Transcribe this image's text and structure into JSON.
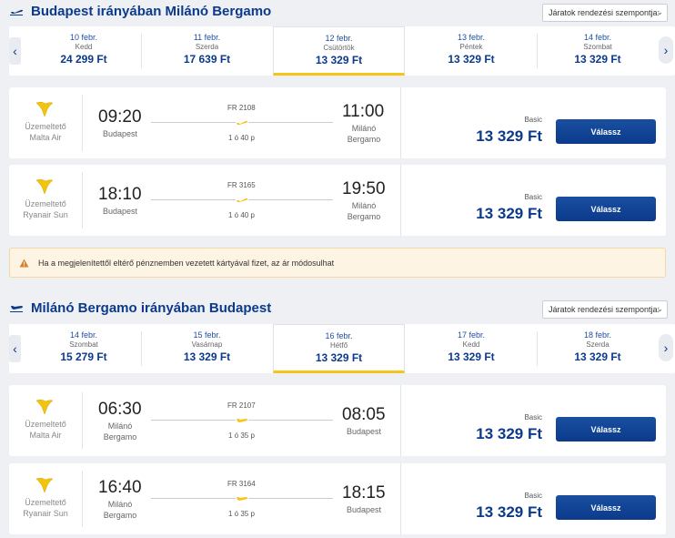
{
  "outbound": {
    "title": "Budapest irányában Milánó Bergamo",
    "sort_label": "Járatok rendezési szempontja:",
    "dates": [
      {
        "date": "10 febr.",
        "weekday": "Kedd",
        "price": "24 299 Ft"
      },
      {
        "date": "11 febr.",
        "weekday": "Szerda",
        "price": "17 639 Ft"
      },
      {
        "date": "12 febr.",
        "weekday": "Csütörtök",
        "price": "13 329 Ft",
        "selected": true
      },
      {
        "date": "13 febr.",
        "weekday": "Péntek",
        "price": "13 329 Ft"
      },
      {
        "date": "14 febr.",
        "weekday": "Szombat",
        "price": "13 329 Ft"
      }
    ],
    "flights": [
      {
        "operator_label": "Üzemeltető",
        "operator": "Malta Air",
        "dep_time": "09:20",
        "dep_place": "Budapest",
        "flight_no": "FR 2108",
        "duration": "1 ó 40 p",
        "arr_time": "11:00",
        "arr_place_1": "Milánó",
        "arr_place_2": "Bergamo",
        "fare": "Basic",
        "price": "13 329 Ft",
        "button": "Válassz"
      },
      {
        "operator_label": "Üzemeltető",
        "operator": "Ryanair Sun",
        "dep_time": "18:10",
        "dep_place": "Budapest",
        "flight_no": "FR 3165",
        "duration": "1 ó 40 p",
        "arr_time": "19:50",
        "arr_place_1": "Milánó",
        "arr_place_2": "Bergamo",
        "fare": "Basic",
        "price": "13 329 Ft",
        "button": "Válassz"
      }
    ]
  },
  "warning": "Ha a megjelenítettől eltérő pénznemben vezetett kártyával fizet, az ár módosulhat",
  "inbound": {
    "title": "Milánó Bergamo irányában Budapest",
    "sort_label": "Járatok rendezési szempontja:",
    "dates": [
      {
        "date": "14 febr.",
        "weekday": "Szombat",
        "price": "15 279 Ft"
      },
      {
        "date": "15 febr.",
        "weekday": "Vasárnap",
        "price": "13 329 Ft"
      },
      {
        "date": "16 febr.",
        "weekday": "Hétfő",
        "price": "13 329 Ft",
        "selected": true
      },
      {
        "date": "17 febr.",
        "weekday": "Kedd",
        "price": "13 329 Ft"
      },
      {
        "date": "18 febr.",
        "weekday": "Szerda",
        "price": "13 329 Ft"
      }
    ],
    "flights": [
      {
        "operator_label": "Üzemeltető",
        "operator": "Malta Air",
        "dep_time": "06:30",
        "dep_place_1": "Milánó",
        "dep_place_2": "Bergamo",
        "flight_no": "FR 2107",
        "duration": "1 ó 35 p",
        "arr_time": "08:05",
        "arr_place": "Budapest",
        "fare": "Basic",
        "price": "13 329 Ft",
        "button": "Válassz"
      },
      {
        "operator_label": "Üzemeltető",
        "operator": "Ryanair Sun",
        "dep_time": "16:40",
        "dep_place_1": "Milánó",
        "dep_place_2": "Bergamo",
        "flight_no": "FR 3164",
        "duration": "1 ó 35 p",
        "arr_time": "18:15",
        "arr_place": "Budapest",
        "fare": "Basic",
        "price": "13 329 Ft",
        "button": "Válassz"
      }
    ]
  },
  "colors": {
    "brand": "#0b3a8c",
    "accent": "#f5c518",
    "warning_bg": "#fdf4e3",
    "warning_icon": "#d9822b"
  },
  "icons": {
    "plane": "plane-icon",
    "harp": "ryanair-harp-icon",
    "warning": "warning-icon",
    "chevron_down": "chevron-down-icon",
    "chevron_left": "chevron-left-icon",
    "chevron_right": "chevron-right-icon"
  }
}
